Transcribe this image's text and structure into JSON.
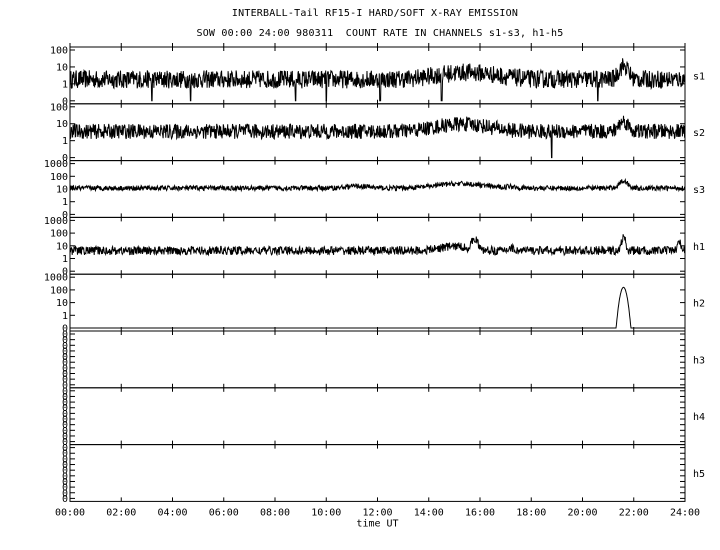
{
  "title": "INTERBALL-Tail RF15-I HARD/SOFT X-RAY EMISSION",
  "subtitle": "SOW 00:00 24:00 980311  COUNT RATE IN CHANNELS s1-s3, h1-h5",
  "chart_data": {
    "type": "line",
    "title": "INTERBALL-Tail RF15-I HARD/SOFT X-RAY EMISSION",
    "subtitle": "SOW 00:00 24:00 980311  COUNT RATE IN CHANNELS s1-s3, h1-h5",
    "xlabel": "time UT",
    "x_ticks": [
      "00:00",
      "02:00",
      "04:00",
      "06:00",
      "08:00",
      "10:00",
      "12:00",
      "14:00",
      "16:00",
      "18:00",
      "20:00",
      "22:00",
      "24:00"
    ],
    "xlim": [
      0,
      24
    ],
    "y_scale": "log",
    "grid": false,
    "panels": [
      {
        "name": "s1",
        "y_ticks": [
          "100",
          "10",
          "1",
          "0"
        ],
        "ylim": [
          0.3,
          100
        ],
        "baseline": 3.5,
        "noise": 0.9,
        "features": [
          [
            15.5,
            1.0,
            2.2
          ],
          [
            21.6,
            0.15,
            4.5
          ]
        ],
        "dips": [
          3.2,
          4.7,
          8.8,
          10.0,
          12.1,
          14.5,
          20.6
        ]
      },
      {
        "name": "s2",
        "y_ticks": [
          "100",
          "10",
          "1",
          "0"
        ],
        "ylim": [
          0.3,
          100
        ],
        "baseline": 6,
        "noise": 0.75,
        "features": [
          [
            15.3,
            0.9,
            2.3
          ],
          [
            21.6,
            0.15,
            3.2
          ]
        ],
        "dips": [
          18.8
        ]
      },
      {
        "name": "s3",
        "y_ticks": [
          "1000",
          "100",
          "10",
          "1",
          "0"
        ],
        "ylim": [
          0.3,
          1000
        ],
        "baseline": 20,
        "noise": 0.35,
        "features": [
          [
            15.2,
            0.8,
            2.0
          ],
          [
            11.2,
            0.4,
            1.4
          ],
          [
            17.2,
            0.2,
            1.3
          ],
          [
            21.6,
            0.15,
            3.0
          ]
        ],
        "dips": []
      },
      {
        "name": "h1",
        "y_ticks": [
          "1000",
          "100",
          "10",
          "1",
          "0"
        ],
        "ylim": [
          0.3,
          1000
        ],
        "baseline": 8,
        "noise": 0.6,
        "features": [
          [
            15.0,
            0.5,
            2.0
          ],
          [
            15.8,
            0.08,
            6.0
          ],
          [
            17.2,
            0.1,
            1.6
          ],
          [
            21.6,
            0.06,
            8.0
          ],
          [
            23.8,
            0.08,
            3.0
          ]
        ],
        "dips": []
      },
      {
        "name": "h2",
        "y_ticks": [
          "1000",
          "100",
          "10",
          "1",
          "0"
        ],
        "ylim": [
          0.3,
          1000
        ],
        "baseline": 0,
        "noise": 0,
        "features": [
          [
            21.6,
            0.08,
            200
          ]
        ],
        "dips": []
      },
      {
        "name": "h3",
        "y_ticks": [
          "0",
          "0",
          "0",
          "0",
          "0",
          "0",
          "0",
          "0",
          "0",
          "0"
        ],
        "ylim": [
          0,
          1
        ],
        "baseline": 0,
        "noise": 0,
        "features": [],
        "dips": []
      },
      {
        "name": "h4",
        "y_ticks": [
          "0",
          "0",
          "0",
          "0",
          "0",
          "0",
          "0",
          "0",
          "0",
          "0"
        ],
        "ylim": [
          0,
          1
        ],
        "baseline": 0,
        "noise": 0,
        "features": [],
        "dips": []
      },
      {
        "name": "h5",
        "y_ticks": [
          "0",
          "0",
          "0",
          "0",
          "0",
          "0",
          "0",
          "0",
          "0",
          "0"
        ],
        "ylim": [
          0,
          1
        ],
        "baseline": 0,
        "noise": 0,
        "features": [],
        "dips": []
      }
    ]
  }
}
